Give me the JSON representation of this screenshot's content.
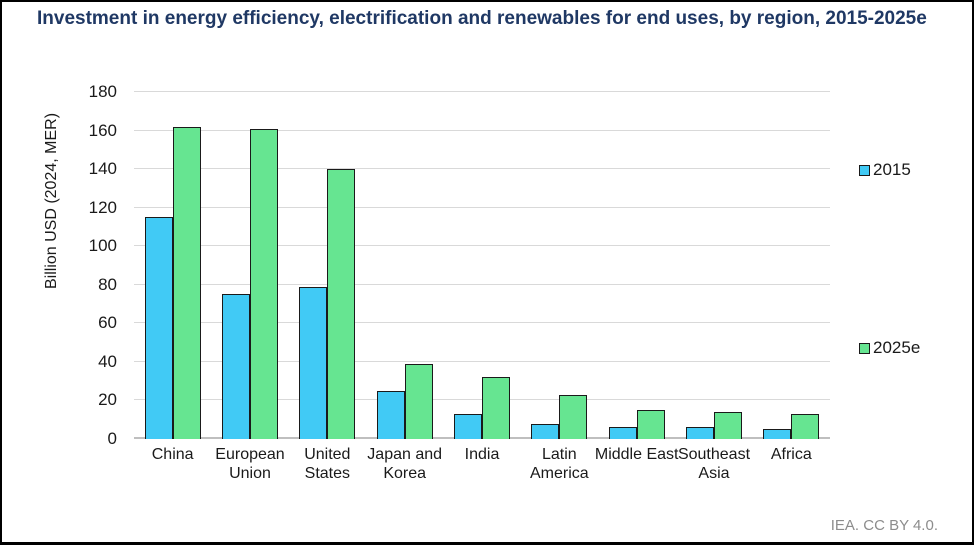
{
  "chart_data": {
    "type": "bar",
    "title": "Investment in energy efficiency, electrification and renewables for end uses, by region, 2015-2025e",
    "xlabel": "",
    "ylabel": "Billion USD (2024, MER)",
    "ylim": [
      0,
      180
    ],
    "ytick_step": 20,
    "grid": true,
    "legend_position": "right",
    "categories": [
      "China",
      "European Union",
      "United States",
      "Japan and Korea",
      "India",
      "Latin America",
      "Middle East",
      "Southeast Asia",
      "Africa"
    ],
    "series": [
      {
        "name": "2015",
        "color": "#41CAF5",
        "values": [
          115,
          75,
          79,
          25,
          13,
          8,
          6,
          6,
          5
        ]
      },
      {
        "name": "2025e",
        "color": "#66E591",
        "values": [
          162,
          161,
          140,
          39,
          32,
          23,
          15,
          14,
          13
        ]
      }
    ]
  },
  "footer": "IEA. CC BY 4.0.",
  "colors": {
    "title_text": "#1F3864",
    "bar_outline": "#1A1A1A",
    "gridline": "#D9D9D9",
    "baseline": "#BFBFBF",
    "footer_text": "#8C8C8C"
  }
}
